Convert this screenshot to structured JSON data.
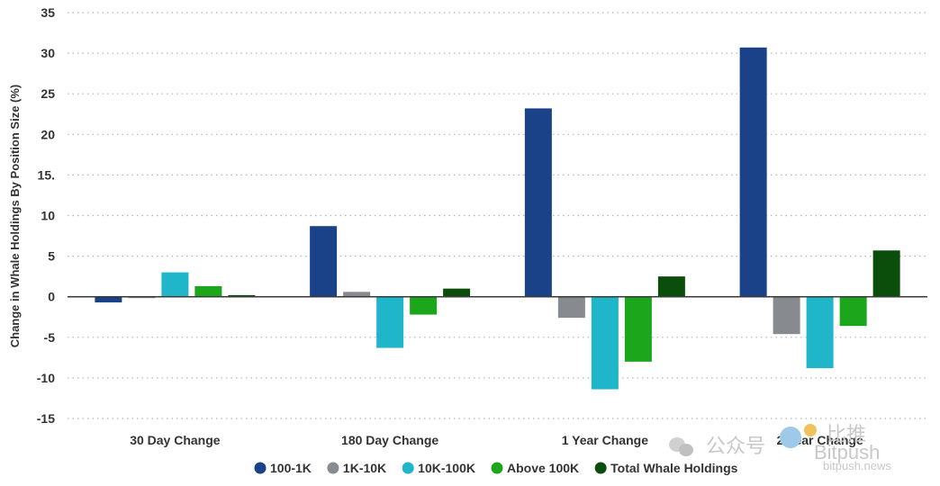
{
  "chart_data": {
    "type": "bar",
    "ylabel": "Change in Whale Holdings By Position Size (%)",
    "ylim": [
      -15,
      35
    ],
    "yticks": [
      35,
      30,
      25,
      20,
      15,
      10,
      5,
      0,
      -5,
      -10,
      -15
    ],
    "ytick_labels": [
      "35",
      "30",
      "25",
      "20",
      "15.",
      "10",
      "5",
      "0",
      "-5",
      "-10",
      "-15"
    ],
    "grid": true,
    "legend_position": "bottom",
    "categories": [
      "30 Day Change",
      "180 Day Change",
      "1 Year Change",
      "2 Year Change"
    ],
    "series": [
      {
        "name": "100-1K",
        "color": "#1a4289",
        "values": [
          -0.7,
          8.7,
          23.2,
          30.7
        ]
      },
      {
        "name": "1K-10K",
        "color": "#878a8e",
        "values": [
          -0.1,
          0.6,
          -2.6,
          -4.6
        ]
      },
      {
        "name": "10K-100K",
        "color": "#1fb6c9",
        "values": [
          3.0,
          -6.3,
          -11.4,
          -8.8
        ]
      },
      {
        "name": "Above 100K",
        "color": "#1ba61b",
        "values": [
          1.3,
          -2.2,
          -8.0,
          -3.6
        ]
      },
      {
        "name": "Total Whale Holdings",
        "color": "#0b4d0b",
        "values": [
          0.2,
          1.0,
          2.5,
          5.7
        ]
      }
    ]
  },
  "watermark": {
    "brand_cn": "比推",
    "brand_en": "Bitpush",
    "wechat_label": "公众号",
    "site": "bitpush.news"
  }
}
